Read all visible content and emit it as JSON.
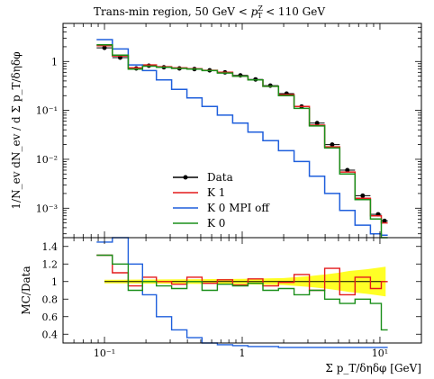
{
  "title": "Trans-min region, 50 GeV < p_T^Z < 110 GeV",
  "colors": {
    "data": "#000000",
    "k1": "#e41a1c",
    "k0nompi": "#1f5fdc",
    "k0": "#1a8f1a",
    "band": "#ffff00"
  },
  "chart_data": [
    {
      "type": "line",
      "panel": "main",
      "ylabel": "1/N_ev dN_ev / d Σ p_T/δηδφ",
      "xscale": "log",
      "yscale": "log",
      "xlim": [
        0.05,
        20
      ],
      "ylim": [
        0.00025,
        6
      ],
      "y_ticks": [
        {
          "value": 1,
          "label": "1"
        },
        {
          "value": 0.1,
          "label": "10⁻¹"
        },
        {
          "value": 0.01,
          "label": "10⁻²"
        },
        {
          "value": 0.001,
          "label": "10⁻³"
        }
      ],
      "legend_position": "lower-left",
      "x": [
        0.1,
        0.13,
        0.17,
        0.21,
        0.27,
        0.35,
        0.45,
        0.58,
        0.75,
        0.97,
        1.25,
        1.6,
        2.1,
        2.7,
        3.5,
        4.5,
        5.8,
        7.5,
        9.7,
        10.8
      ],
      "series": [
        {
          "name": "Data",
          "key": "data",
          "style": "markers",
          "values": [
            1.9,
            1.2,
            0.72,
            0.82,
            0.76,
            0.72,
            0.7,
            0.66,
            0.6,
            0.52,
            0.43,
            0.32,
            0.22,
            0.12,
            0.055,
            0.02,
            0.006,
            0.0018,
            0.00075,
            0.00055
          ]
        },
        {
          "name": "K 1",
          "key": "k1",
          "style": "step",
          "values": [
            2.1,
            1.3,
            0.74,
            0.85,
            0.78,
            0.74,
            0.71,
            0.66,
            0.6,
            0.5,
            0.42,
            0.31,
            0.21,
            0.12,
            0.05,
            0.018,
            0.0055,
            0.0016,
            0.0007,
            0.0005
          ]
        },
        {
          "name": "K 0 MPI off",
          "key": "k0nompi",
          "style": "step",
          "values": [
            2.8,
            1.8,
            0.85,
            0.65,
            0.42,
            0.27,
            0.18,
            0.12,
            0.08,
            0.055,
            0.036,
            0.024,
            0.015,
            0.009,
            0.0045,
            0.002,
            0.0009,
            0.00045,
            0.0003,
            0.00028
          ]
        },
        {
          "name": "K 0",
          "key": "k0",
          "style": "step",
          "values": [
            2.2,
            1.35,
            0.7,
            0.8,
            0.76,
            0.72,
            0.7,
            0.65,
            0.58,
            0.5,
            0.42,
            0.31,
            0.2,
            0.11,
            0.048,
            0.017,
            0.005,
            0.0015,
            0.0006,
            0.00025
          ]
        }
      ]
    },
    {
      "type": "line",
      "panel": "ratio",
      "xlabel": "Σ p_T/δηδφ [GeV]",
      "ylabel": "MC/Data",
      "xscale": "log",
      "xlim": [
        0.05,
        20
      ],
      "ylim": [
        0.3,
        1.5
      ],
      "x_ticks": [
        {
          "value": 0.1,
          "label": "10⁻¹"
        },
        {
          "value": 1,
          "label": "1"
        },
        {
          "value": 10,
          "label": "10¹"
        }
      ],
      "y_ticks": [
        {
          "value": 0.4,
          "label": "0.4"
        },
        {
          "value": 0.6,
          "label": "0.6"
        },
        {
          "value": 0.8,
          "label": "0.8"
        },
        {
          "value": 1,
          "label": "1"
        },
        {
          "value": 1.2,
          "label": "1.2"
        },
        {
          "value": 1.4,
          "label": "1.4"
        }
      ],
      "band": {
        "name": "Data uncertainty",
        "x": [
          0.1,
          1,
          2,
          3,
          4,
          5,
          6,
          8,
          10,
          11
        ],
        "lo": [
          0.98,
          0.97,
          0.96,
          0.94,
          0.92,
          0.9,
          0.88,
          0.86,
          0.84,
          0.83
        ],
        "hi": [
          1.02,
          1.03,
          1.04,
          1.06,
          1.08,
          1.1,
          1.12,
          1.14,
          1.16,
          1.17
        ]
      },
      "x": [
        0.1,
        0.13,
        0.17,
        0.21,
        0.27,
        0.35,
        0.45,
        0.58,
        0.75,
        0.97,
        1.25,
        1.6,
        2.1,
        2.7,
        3.5,
        4.5,
        5.8,
        7.5,
        9.7,
        10.8
      ],
      "series": [
        {
          "name": "K 1",
          "key": "k1",
          "values": [
            1.3,
            1.1,
            0.95,
            1.05,
            1.0,
            0.97,
            1.05,
            0.98,
            1.02,
            0.96,
            1.03,
            0.95,
            0.99,
            1.08,
            0.9,
            1.15,
            0.85,
            1.05,
            0.92,
            1.0
          ]
        },
        {
          "name": "K 0 MPI off",
          "key": "k0nompi",
          "values": [
            1.45,
            1.5,
            1.2,
            0.85,
            0.6,
            0.45,
            0.36,
            0.3,
            0.28,
            0.27,
            0.26,
            0.26,
            0.25,
            0.25,
            0.25,
            0.25,
            0.25,
            0.25,
            0.25,
            0.25
          ]
        },
        {
          "name": "K 0",
          "key": "k0",
          "values": [
            1.3,
            1.2,
            0.9,
            1.0,
            0.95,
            0.92,
            1.0,
            0.9,
            0.97,
            0.95,
            0.98,
            0.9,
            0.92,
            0.85,
            0.9,
            0.8,
            0.75,
            0.8,
            0.75,
            0.45
          ]
        }
      ]
    }
  ]
}
